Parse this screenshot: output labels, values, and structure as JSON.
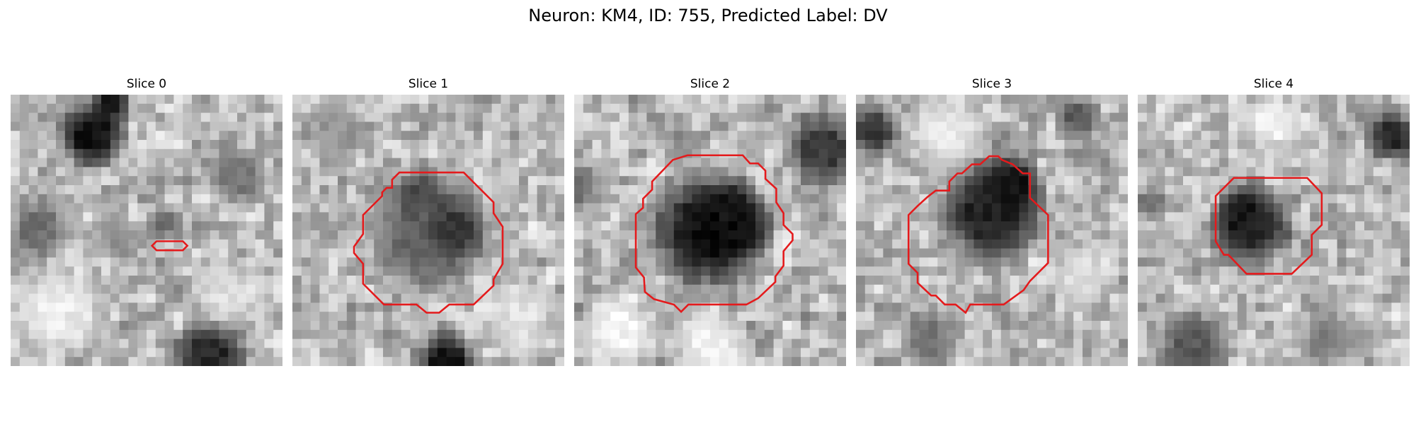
{
  "figure": {
    "title": "Neuron: KM4, ID: 755, Predicted Label: DV",
    "contour_color": "#e41a1c",
    "grid_size": 30
  },
  "panels": [
    {
      "title": "Slice 0",
      "blobs": [
        {
          "cx": 9,
          "cy": 4.5,
          "r": 4.5,
          "v": 20
        },
        {
          "cx": 11,
          "cy": 1,
          "r": 2.5,
          "v": 30
        },
        {
          "cx": 3,
          "cy": 15,
          "r": 4,
          "v": 110
        },
        {
          "cx": 17,
          "cy": 14,
          "r": 2.5,
          "v": 110
        },
        {
          "cx": 12,
          "cy": 16,
          "r": 3,
          "v": 140
        },
        {
          "cx": 25,
          "cy": 9,
          "r": 4,
          "v": 120
        },
        {
          "cx": 22,
          "cy": 29,
          "r": 5,
          "v": 40
        },
        {
          "cx": 5,
          "cy": 24,
          "r": 6,
          "v": 235
        },
        {
          "cx": 24,
          "cy": 22,
          "r": 4,
          "v": 225
        }
      ],
      "contour": [
        [
          15.6,
          16.7
        ],
        [
          16.1,
          16.2
        ],
        [
          19,
          16.2
        ],
        [
          19.5,
          16.7
        ],
        [
          19,
          17.2
        ],
        [
          16.1,
          17.2
        ]
      ]
    },
    {
      "title": "Slice 1",
      "blobs": [
        {
          "cx": 15,
          "cy": 15,
          "r": 8,
          "v": 95
        },
        {
          "cx": 18,
          "cy": 15,
          "r": 4,
          "v": 55
        },
        {
          "cx": 14,
          "cy": 11,
          "r": 3,
          "v": 70
        },
        {
          "cx": 17,
          "cy": 29.5,
          "r": 4,
          "v": 20
        },
        {
          "cx": 5,
          "cy": 4,
          "r": 4,
          "v": 150
        },
        {
          "cx": 25,
          "cy": 25,
          "r": 5,
          "v": 225
        }
      ],
      "contour": [
        [
          11.8,
          8.6
        ],
        [
          18.9,
          8.6
        ],
        [
          22.2,
          11.9
        ],
        [
          22.2,
          13.1
        ],
        [
          23.2,
          14.6
        ],
        [
          23.2,
          18.7
        ],
        [
          22.2,
          20.4
        ],
        [
          22.2,
          21.1
        ],
        [
          20,
          23.2
        ],
        [
          17.3,
          23.2
        ],
        [
          16.2,
          24.1
        ],
        [
          14.8,
          24.1
        ],
        [
          13.7,
          23.2
        ],
        [
          10.1,
          23.2
        ],
        [
          7.8,
          20.9
        ],
        [
          7.8,
          18.7
        ],
        [
          6.8,
          17.5
        ],
        [
          6.8,
          16.8
        ],
        [
          7.8,
          15.4
        ],
        [
          7.8,
          13.3
        ],
        [
          9.9,
          11.2
        ],
        [
          9.9,
          10.8
        ],
        [
          10.4,
          10.3
        ],
        [
          11,
          10.3
        ],
        [
          11,
          9.4
        ]
      ]
    },
    {
      "title": "Slice 2",
      "blobs": [
        {
          "cx": 15,
          "cy": 15,
          "r": 8,
          "v": 20
        },
        {
          "cx": 17,
          "cy": 14,
          "r": 5,
          "v": 15
        },
        {
          "cx": 27.5,
          "cy": 6,
          "r": 5,
          "v": 60
        },
        {
          "cx": 0.5,
          "cy": 10,
          "r": 3,
          "v": 110
        },
        {
          "cx": 5,
          "cy": 26,
          "r": 5,
          "v": 245
        },
        {
          "cx": 15,
          "cy": 28,
          "r": 5,
          "v": 240
        }
      ],
      "contour": [
        [
          10.9,
          7.2
        ],
        [
          12.5,
          6.7
        ],
        [
          18.6,
          6.7
        ],
        [
          19.4,
          7.6
        ],
        [
          20.3,
          7.6
        ],
        [
          21.1,
          8.4
        ],
        [
          21.1,
          9.3
        ],
        [
          22.3,
          10.4
        ],
        [
          22.3,
          11.9
        ],
        [
          23.1,
          13.1
        ],
        [
          23.1,
          14.4
        ],
        [
          24.1,
          15.4
        ],
        [
          24.1,
          16.1
        ],
        [
          23.1,
          17.3
        ],
        [
          23.1,
          18.9
        ],
        [
          22.2,
          20.1
        ],
        [
          22.2,
          20.7
        ],
        [
          20.3,
          22.5
        ],
        [
          19,
          23.2
        ],
        [
          12.6,
          23.2
        ],
        [
          11.8,
          24
        ],
        [
          11,
          23.2
        ],
        [
          8.8,
          22.6
        ],
        [
          7.8,
          21.8
        ],
        [
          7.7,
          20.2
        ],
        [
          6.8,
          19.1
        ],
        [
          6.8,
          13.2
        ],
        [
          7.6,
          12.5
        ],
        [
          7.6,
          11.5
        ],
        [
          8.6,
          10.5
        ],
        [
          8.6,
          9.6
        ]
      ]
    },
    {
      "title": "Slice 3",
      "blobs": [
        {
          "cx": 15,
          "cy": 13,
          "r": 7,
          "v": 35
        },
        {
          "cx": 17,
          "cy": 10,
          "r": 4,
          "v": 20
        },
        {
          "cx": 2,
          "cy": 4,
          "r": 3.5,
          "v": 60
        },
        {
          "cx": 24.5,
          "cy": 2.5,
          "r": 3,
          "v": 90
        },
        {
          "cx": 8,
          "cy": 27,
          "r": 4,
          "v": 120
        },
        {
          "cx": 25,
          "cy": 20,
          "r": 4,
          "v": 225
        },
        {
          "cx": 10,
          "cy": 4,
          "r": 5,
          "v": 230
        }
      ],
      "contour": [
        [
          10.3,
          10.6
        ],
        [
          10.3,
          9.6
        ],
        [
          11.2,
          8.7
        ],
        [
          11.7,
          8.7
        ],
        [
          12.8,
          7.7
        ],
        [
          13.7,
          7.7
        ],
        [
          14.7,
          6.8
        ],
        [
          15.7,
          6.8
        ],
        [
          16.1,
          7.2
        ],
        [
          17.3,
          7.7
        ],
        [
          18.4,
          8.7
        ],
        [
          19.2,
          8.7
        ],
        [
          19.2,
          11.4
        ],
        [
          21.2,
          13.3
        ],
        [
          21.2,
          18.6
        ],
        [
          19.2,
          20.6
        ],
        [
          18.5,
          21.6
        ],
        [
          16.3,
          23.2
        ],
        [
          12.6,
          23.2
        ],
        [
          12.1,
          24.1
        ],
        [
          11,
          23.2
        ],
        [
          9.8,
          23.2
        ],
        [
          8.8,
          22.2
        ],
        [
          8.3,
          22.2
        ],
        [
          6.8,
          20.8
        ],
        [
          6.8,
          19.7
        ],
        [
          5.8,
          18.7
        ],
        [
          5.8,
          13.3
        ],
        [
          6.8,
          12.3
        ],
        [
          7.9,
          11.3
        ],
        [
          8.8,
          10.6
        ]
      ]
    },
    {
      "title": "Slice 4",
      "blobs": [
        {
          "cx": 12.5,
          "cy": 14.5,
          "r": 5.5,
          "v": 40
        },
        {
          "cx": 11.5,
          "cy": 13.5,
          "r": 3.5,
          "v": 25
        },
        {
          "cx": 28,
          "cy": 4.5,
          "r": 3.5,
          "v": 40
        },
        {
          "cx": 1.5,
          "cy": 12,
          "r": 2.5,
          "v": 110
        },
        {
          "cx": 6,
          "cy": 28,
          "r": 5,
          "v": 90
        },
        {
          "cx": 21,
          "cy": 27,
          "r": 4,
          "v": 130
        },
        {
          "cx": 15,
          "cy": 3,
          "r": 4,
          "v": 240
        }
      ],
      "contour": [
        [
          8.6,
          11.2
        ],
        [
          10.6,
          9.2
        ],
        [
          18.7,
          9.2
        ],
        [
          20.3,
          10.9
        ],
        [
          20.3,
          14.4
        ],
        [
          19.2,
          15.5
        ],
        [
          19.2,
          17.7
        ],
        [
          17,
          19.8
        ],
        [
          12,
          19.8
        ],
        [
          10,
          17.7
        ],
        [
          9.5,
          17.7
        ],
        [
          8.6,
          16.2
        ]
      ]
    }
  ]
}
